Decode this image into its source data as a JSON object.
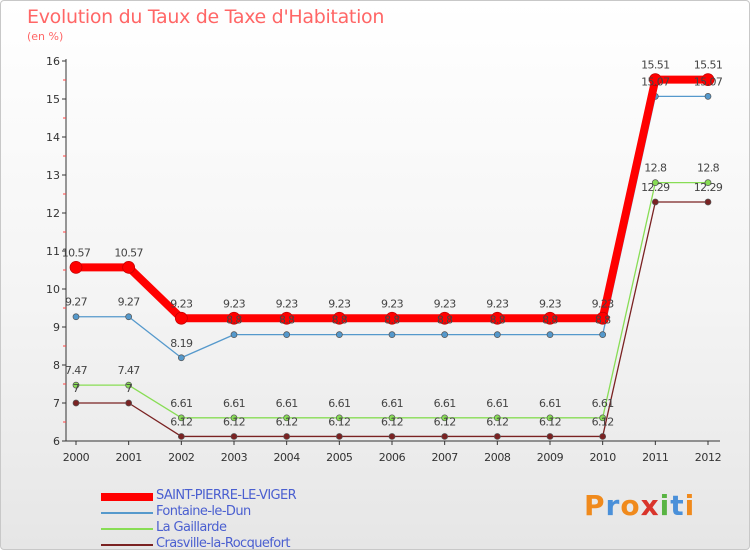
{
  "header": {
    "title": "Evolution du Taux de Taxe d'Habitation",
    "subtitle": "(en %)"
  },
  "chart_data": {
    "type": "line",
    "title": "Evolution du Taux de Taxe d'Habitation",
    "ylabel": "(en %)",
    "xlabel": "",
    "ylim": [
      6,
      16
    ],
    "yticks": [
      "6",
      "7",
      "8",
      "9",
      "10",
      "11",
      "12",
      "13",
      "14",
      "15",
      "16"
    ],
    "categories": [
      "2000",
      "2001",
      "2002",
      "2003",
      "2004",
      "2005",
      "2006",
      "2007",
      "2008",
      "2009",
      "2010",
      "2011",
      "2012"
    ],
    "grid": false,
    "legend_position": "bottom-left",
    "series": [
      {
        "name": "SAINT-PIERRE-LE-VIGER",
        "color": "#ff0000",
        "values": [
          10.57,
          10.57,
          9.23,
          9.23,
          9.23,
          9.23,
          9.23,
          9.23,
          9.23,
          9.23,
          9.23,
          15.51,
          15.51
        ],
        "labels": [
          "10.57",
          "10.57",
          "9.23",
          "9.23",
          "9.23",
          "9.23",
          "9.23",
          "9.23",
          "9.23",
          "9.23",
          "9.23",
          "15.51",
          "15.51"
        ]
      },
      {
        "name": "Fontaine-le-Dun",
        "color": "#5599cc",
        "values": [
          9.27,
          9.27,
          8.19,
          8.8,
          8.8,
          8.8,
          8.8,
          8.8,
          8.8,
          8.8,
          8.8,
          15.07,
          15.07
        ],
        "labels": [
          "9.27",
          "9.27",
          "8.19",
          "8.8",
          "8.8",
          "8.8",
          "8.8",
          "8.8",
          "8.8",
          "8.8",
          "8.8",
          "15.07",
          "15.07"
        ]
      },
      {
        "name": "La Gaillarde",
        "color": "#88dd55",
        "values": [
          7.47,
          7.47,
          6.61,
          6.61,
          6.61,
          6.61,
          6.61,
          6.61,
          6.61,
          6.61,
          6.61,
          12.8,
          12.8
        ],
        "labels": [
          "7.47",
          "7.47",
          "6.61",
          "6.61",
          "6.61",
          "6.61",
          "6.61",
          "6.61",
          "6.61",
          "6.61",
          "6.61",
          "12.8",
          "12.8"
        ]
      },
      {
        "name": "Crasville-la-Rocquefort",
        "color": "#7a2222",
        "values": [
          7,
          7,
          6.12,
          6.12,
          6.12,
          6.12,
          6.12,
          6.12,
          6.12,
          6.12,
          6.12,
          12.29,
          12.29
        ],
        "labels": [
          "7",
          "7",
          "6.12",
          "6.12",
          "6.12",
          "6.12",
          "6.12",
          "6.12",
          "6.12",
          "6.12",
          "6.12",
          "12.29",
          "12.29"
        ]
      }
    ]
  },
  "logo": {
    "letters": [
      "P",
      "r",
      "o",
      "x",
      "i",
      "t",
      "i"
    ],
    "colors": [
      "#f08a1c",
      "#4a90d9",
      "#f08a1c",
      "#d9342b",
      "#59b443",
      "#4a90d9",
      "#f08a1c"
    ]
  }
}
